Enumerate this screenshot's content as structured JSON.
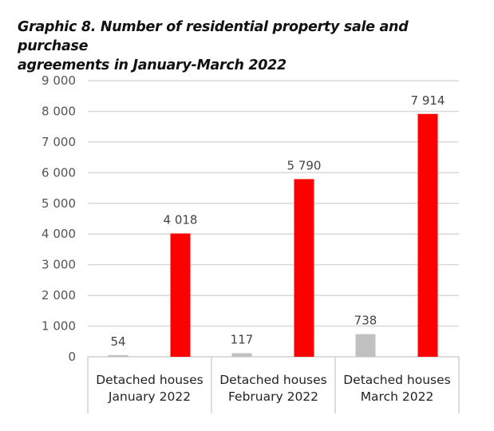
{
  "chart_data": {
    "type": "bar",
    "title": "Graphic 8. Number of residential property sale and purchase agreements in January-March 2022",
    "title_lines": [
      "Graphic 8. Number of residential property sale and purchase",
      "agreements in January-March 2022"
    ],
    "categories": [
      [
        "Detached houses",
        "January 2022"
      ],
      [
        "Detached houses",
        "February 2022"
      ],
      [
        "Detached houses",
        "March 2022"
      ]
    ],
    "series": [
      {
        "name": "",
        "color": "#c0c0c0",
        "values": [
          54,
          117,
          738
        ],
        "labels": [
          "54",
          "117",
          "738"
        ]
      },
      {
        "name": "",
        "color": "#ff0000",
        "values": [
          4018,
          5790,
          7914
        ],
        "labels": [
          "4 018",
          "5 790",
          "7 914"
        ]
      }
    ],
    "ylim": [
      0,
      9000
    ],
    "yticks": [
      0,
      1000,
      2000,
      3000,
      4000,
      5000,
      6000,
      7000,
      8000,
      9000
    ],
    "ytick_labels": [
      "0",
      "1 000",
      "2 000",
      "3 000",
      "4 000",
      "5 000",
      "6 000",
      "7 000",
      "8 000",
      "9 000"
    ],
    "grid": true,
    "xlabel": "",
    "ylabel": ""
  }
}
